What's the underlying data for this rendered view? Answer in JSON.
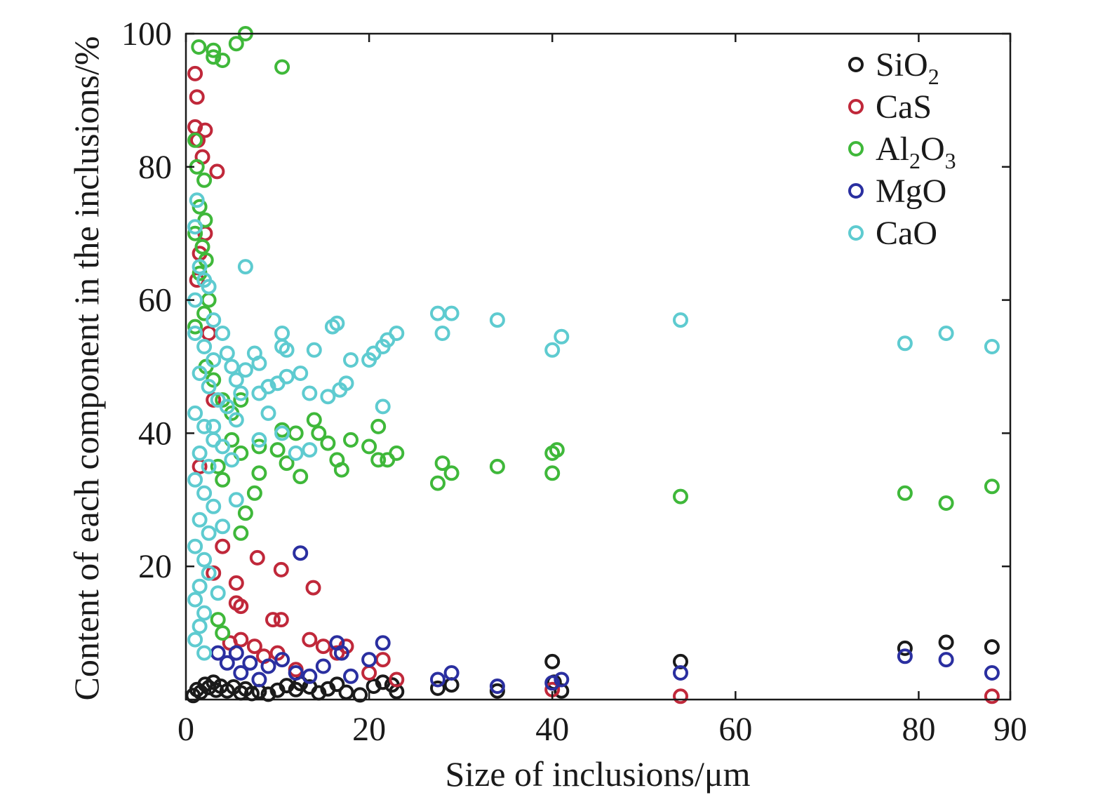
{
  "chart_data": {
    "type": "scatter",
    "xlabel": "Size of inclusions/μm",
    "ylabel": "Content of each component in the inclusions/%",
    "xlim": [
      0,
      90
    ],
    "ylim": [
      0,
      100
    ],
    "x_ticks": [
      "0",
      "20",
      "40",
      "60",
      "80",
      "90"
    ],
    "x_tick_values": [
      0,
      20,
      40,
      60,
      80,
      90
    ],
    "y_ticks": [
      "100",
      "80",
      "60",
      "40",
      "20"
    ],
    "y_tick_values": [
      100,
      80,
      60,
      40,
      20
    ],
    "legend_position": "top-right",
    "grid": false,
    "series": [
      {
        "name": "SiO2",
        "label_main": "SiO",
        "label_sub": "2",
        "label_tail": "",
        "color": "#1a1a1a",
        "points": [
          [
            0.8,
            0.6
          ],
          [
            1.2,
            1.5
          ],
          [
            1.6,
            1.1
          ],
          [
            2.1,
            2.3
          ],
          [
            2.5,
            1.8
          ],
          [
            3.0,
            2.6
          ],
          [
            3.3,
            1.4
          ],
          [
            3.8,
            2.0
          ],
          [
            4.5,
            1.3
          ],
          [
            5.2,
            1.9
          ],
          [
            6.0,
            1.0
          ],
          [
            6.5,
            1.6
          ],
          [
            7.2,
            0.9
          ],
          [
            8.0,
            1.2
          ],
          [
            9.0,
            0.8
          ],
          [
            10.0,
            1.4
          ],
          [
            11.0,
            2.1
          ],
          [
            12.0,
            1.5
          ],
          [
            12.5,
            2.4
          ],
          [
            13.5,
            1.9
          ],
          [
            14.5,
            1.0
          ],
          [
            15.5,
            1.6
          ],
          [
            16.5,
            2.3
          ],
          [
            17.5,
            1.1
          ],
          [
            19.0,
            0.7
          ],
          [
            20.5,
            2.0
          ],
          [
            21.5,
            2.6
          ],
          [
            22.5,
            2.2
          ],
          [
            23.0,
            1.2
          ],
          [
            27.5,
            1.7
          ],
          [
            29.0,
            2.2
          ],
          [
            34.0,
            1.3
          ],
          [
            40.0,
            5.7
          ],
          [
            40.2,
            2.6
          ],
          [
            41.0,
            1.3
          ],
          [
            54.0,
            5.7
          ],
          [
            78.5,
            7.7
          ],
          [
            83.0,
            8.6
          ],
          [
            88.0,
            7.9
          ]
        ]
      },
      {
        "name": "CaS",
        "label_main": "CaS",
        "label_sub": "",
        "label_tail": "",
        "color": "#c0283a",
        "points": [
          [
            1.0,
            94.0
          ],
          [
            1.2,
            90.5
          ],
          [
            1.0,
            86.0
          ],
          [
            2.1,
            85.5
          ],
          [
            1.3,
            84.0
          ],
          [
            1.8,
            81.5
          ],
          [
            3.4,
            79.3
          ],
          [
            2.1,
            70.0
          ],
          [
            1.5,
            67.0
          ],
          [
            1.2,
            63.0
          ],
          [
            2.5,
            55.0
          ],
          [
            3.0,
            45.0
          ],
          [
            1.5,
            35.0
          ],
          [
            4.0,
            23.0
          ],
          [
            3.0,
            19.0
          ],
          [
            5.5,
            17.5
          ],
          [
            5.5,
            14.5
          ],
          [
            6.0,
            14.0
          ],
          [
            7.8,
            21.3
          ],
          [
            10.4,
            19.5
          ],
          [
            13.9,
            16.8
          ],
          [
            9.5,
            12.0
          ],
          [
            10.4,
            12.0
          ],
          [
            4.8,
            8.5
          ],
          [
            6.0,
            9.0
          ],
          [
            7.5,
            8.0
          ],
          [
            8.5,
            6.5
          ],
          [
            10.0,
            7.0
          ],
          [
            12.0,
            4.5
          ],
          [
            13.5,
            9.0
          ],
          [
            15.0,
            8.0
          ],
          [
            16.5,
            7.0
          ],
          [
            17.5,
            8.0
          ],
          [
            20.0,
            4.0
          ],
          [
            21.5,
            6.0
          ],
          [
            23.0,
            3.0
          ],
          [
            40.0,
            1.5
          ],
          [
            54.0,
            0.5
          ],
          [
            88.0,
            0.5
          ]
        ]
      },
      {
        "name": "Al2O3",
        "label_main": "Al",
        "label_sub": "2",
        "label_tail": "O",
        "label_sub2": "3",
        "color": "#3fb83a",
        "points": [
          [
            1.4,
            98.0
          ],
          [
            3.0,
            97.5
          ],
          [
            3.0,
            96.5
          ],
          [
            4.0,
            96.0
          ],
          [
            5.5,
            98.5
          ],
          [
            6.5,
            100.0
          ],
          [
            10.5,
            95.0
          ],
          [
            1.0,
            84.0
          ],
          [
            1.2,
            80.0
          ],
          [
            2.0,
            78.0
          ],
          [
            1.5,
            74.0
          ],
          [
            2.1,
            72.0
          ],
          [
            1.0,
            70.0
          ],
          [
            1.8,
            68.0
          ],
          [
            2.2,
            66.0
          ],
          [
            1.5,
            64.0
          ],
          [
            2.0,
            58.0
          ],
          [
            2.5,
            60.0
          ],
          [
            1.0,
            56.0
          ],
          [
            2.2,
            50.0
          ],
          [
            3.0,
            48.0
          ],
          [
            4.0,
            45.0
          ],
          [
            5.0,
            43.0
          ],
          [
            6.0,
            45.0
          ],
          [
            5.0,
            39.0
          ],
          [
            6.0,
            37.0
          ],
          [
            3.5,
            35.0
          ],
          [
            4.0,
            33.0
          ],
          [
            8.0,
            38.0
          ],
          [
            8.0,
            34.0
          ],
          [
            10.0,
            37.5
          ],
          [
            10.5,
            40.5
          ],
          [
            11.0,
            35.5
          ],
          [
            12.0,
            40.0
          ],
          [
            12.5,
            33.5
          ],
          [
            14.0,
            42.0
          ],
          [
            14.5,
            40.0
          ],
          [
            15.5,
            38.5
          ],
          [
            16.5,
            36.0
          ],
          [
            17.0,
            34.5
          ],
          [
            18.0,
            39.0
          ],
          [
            20.0,
            38.0
          ],
          [
            21.0,
            41.0
          ],
          [
            21.0,
            36.0
          ],
          [
            22.0,
            36.0
          ],
          [
            23.0,
            37.0
          ],
          [
            27.5,
            32.5
          ],
          [
            28.0,
            35.5
          ],
          [
            29.0,
            34.0
          ],
          [
            34.0,
            35.0
          ],
          [
            40.0,
            37.0
          ],
          [
            40.0,
            34.0
          ],
          [
            40.5,
            37.5
          ],
          [
            7.5,
            31.0
          ],
          [
            6.5,
            28.0
          ],
          [
            6.0,
            25.0
          ],
          [
            54.0,
            30.5
          ],
          [
            78.5,
            31.0
          ],
          [
            83.0,
            29.5
          ],
          [
            88.0,
            32.0
          ],
          [
            4.0,
            10.0
          ],
          [
            3.5,
            12.0
          ]
        ]
      },
      {
        "name": "MgO",
        "label_main": "MgO",
        "label_sub": "",
        "label_tail": "",
        "color": "#2a2fa0",
        "points": [
          [
            12.5,
            22.0
          ],
          [
            3.5,
            7.0
          ],
          [
            4.5,
            5.5
          ],
          [
            5.5,
            7.0
          ],
          [
            6.0,
            4.0
          ],
          [
            7.0,
            5.5
          ],
          [
            8.0,
            3.0
          ],
          [
            9.0,
            5.0
          ],
          [
            10.5,
            6.0
          ],
          [
            12.0,
            4.0
          ],
          [
            13.5,
            3.5
          ],
          [
            15.0,
            5.0
          ],
          [
            16.5,
            8.5
          ],
          [
            17.0,
            7.0
          ],
          [
            18.0,
            3.5
          ],
          [
            20.0,
            6.0
          ],
          [
            21.5,
            8.5
          ],
          [
            27.5,
            3.0
          ],
          [
            29.0,
            4.0
          ],
          [
            34.0,
            2.0
          ],
          [
            40.0,
            2.5
          ],
          [
            41.0,
            3.0
          ],
          [
            54.0,
            4.0
          ],
          [
            78.5,
            6.5
          ],
          [
            83.0,
            6.0
          ],
          [
            88.0,
            4.0
          ]
        ]
      },
      {
        "name": "CaO",
        "label_main": "CaO",
        "label_sub": "",
        "label_tail": "",
        "color": "#5ecbd0",
        "points": [
          [
            1.2,
            75.0
          ],
          [
            1.0,
            71.0
          ],
          [
            1.5,
            65.0
          ],
          [
            2.0,
            63.0
          ],
          [
            2.5,
            62.0
          ],
          [
            1.0,
            60.0
          ],
          [
            6.5,
            65.0
          ],
          [
            3.0,
            57.0
          ],
          [
            1.0,
            55.0
          ],
          [
            2.0,
            53.0
          ],
          [
            3.0,
            51.0
          ],
          [
            1.5,
            49.0
          ],
          [
            2.5,
            47.0
          ],
          [
            3.5,
            45.0
          ],
          [
            1.0,
            43.0
          ],
          [
            2.0,
            41.0
          ],
          [
            3.0,
            39.0
          ],
          [
            1.5,
            37.0
          ],
          [
            2.5,
            35.0
          ],
          [
            1.0,
            33.0
          ],
          [
            2.0,
            31.0
          ],
          [
            3.0,
            29.0
          ],
          [
            1.5,
            27.0
          ],
          [
            2.5,
            25.0
          ],
          [
            1.0,
            23.0
          ],
          [
            2.0,
            21.0
          ],
          [
            2.5,
            19.0
          ],
          [
            1.5,
            17.0
          ],
          [
            1.0,
            15.0
          ],
          [
            2.0,
            13.0
          ],
          [
            1.5,
            11.0
          ],
          [
            1.0,
            9.0
          ],
          [
            2.0,
            7.0
          ],
          [
            4.0,
            55.0
          ],
          [
            4.5,
            52.0
          ],
          [
            5.0,
            50.0
          ],
          [
            5.5,
            48.0
          ],
          [
            6.0,
            46.0
          ],
          [
            6.5,
            49.5
          ],
          [
            7.5,
            52.0
          ],
          [
            8.0,
            50.5
          ],
          [
            8.0,
            46.0
          ],
          [
            9.0,
            47.0
          ],
          [
            10.0,
            47.5
          ],
          [
            10.5,
            55.0
          ],
          [
            10.5,
            53.0
          ],
          [
            11.0,
            52.5
          ],
          [
            11.0,
            48.5
          ],
          [
            12.5,
            49.0
          ],
          [
            13.5,
            46.0
          ],
          [
            14.0,
            52.5
          ],
          [
            15.5,
            45.5
          ],
          [
            16.0,
            56.0
          ],
          [
            16.5,
            56.5
          ],
          [
            16.8,
            46.5
          ],
          [
            17.5,
            47.5
          ],
          [
            18.0,
            51.0
          ],
          [
            20.0,
            51.0
          ],
          [
            20.5,
            52.0
          ],
          [
            21.5,
            53.0
          ],
          [
            22.0,
            54.0
          ],
          [
            23.0,
            55.0
          ],
          [
            27.5,
            58.0
          ],
          [
            28.0,
            55.0
          ],
          [
            29.0,
            58.0
          ],
          [
            34.0,
            57.0
          ],
          [
            40.0,
            52.5
          ],
          [
            41.0,
            54.5
          ],
          [
            54.0,
            57.0
          ],
          [
            78.5,
            53.5
          ],
          [
            83.0,
            55.0
          ],
          [
            88.0,
            53.0
          ],
          [
            9.0,
            43.0
          ],
          [
            10.5,
            40.0
          ],
          [
            12.0,
            37.0
          ],
          [
            13.5,
            37.5
          ],
          [
            8.0,
            39.0
          ],
          [
            21.5,
            44.0
          ],
          [
            5.5,
            30.0
          ],
          [
            4.0,
            26.0
          ],
          [
            3.5,
            16.0
          ],
          [
            4.0,
            38.0
          ],
          [
            5.0,
            36.0
          ],
          [
            3.0,
            41.0
          ],
          [
            4.5,
            44.0
          ],
          [
            5.5,
            42.0
          ]
        ]
      }
    ]
  }
}
